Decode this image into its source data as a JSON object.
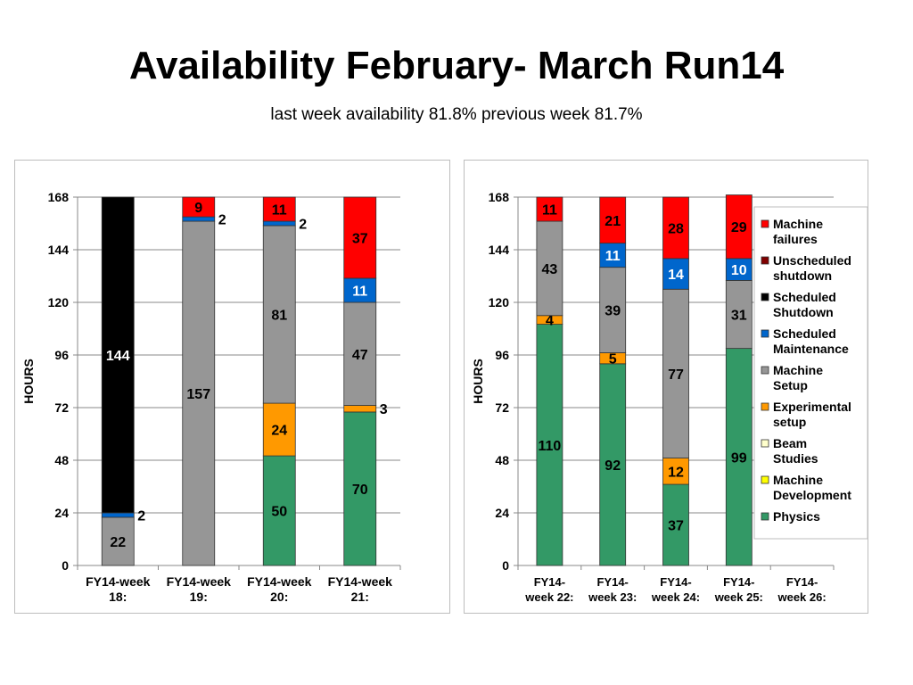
{
  "header": {
    "title": "Availability February- March Run14",
    "subtitle": "last week availability 81.8% previous week 81.7%"
  },
  "colors": {
    "Physics": "#339966",
    "Experimental setup": "#ff9900",
    "Machine Setup": "#969696",
    "Scheduled Maintenance": "#0066cc",
    "Scheduled Shutdown": "#000000",
    "Machine failures": "#ff0000",
    "Unscheduled shutdown": "#800000",
    "Beam Studies": "#ffffcc",
    "Machine Development": "#ffff00"
  },
  "chart_data": [
    {
      "type": "bar",
      "stacked": true,
      "ylabel": "HOURS",
      "ylim": [
        0,
        168
      ],
      "yticks": [
        "0",
        "24",
        "48",
        "72",
        "96",
        "120",
        "144",
        "168"
      ],
      "grid": true,
      "categories": [
        "FY14-week\n18:",
        "FY14-week\n19:",
        "FY14-week\n20:",
        "FY14-week\n21:"
      ],
      "series": [
        {
          "name": "Physics",
          "values": [
            0,
            0,
            50,
            70
          ],
          "labels": [
            "",
            "",
            "50",
            "70"
          ]
        },
        {
          "name": "Machine Setup",
          "values": [
            22,
            157,
            81,
            47
          ],
          "labels": [
            "22",
            "157",
            "81",
            "47"
          ]
        },
        {
          "name": "Experimental setup",
          "values": [
            0,
            0,
            24,
            3
          ],
          "labels": [
            "",
            "",
            "24",
            "3"
          ]
        },
        {
          "name": "Scheduled Maintenance",
          "values": [
            2,
            2,
            2,
            11
          ],
          "labels": [
            "2",
            "2",
            "2",
            "11"
          ]
        },
        {
          "name": "Scheduled Shutdown",
          "values": [
            144,
            0,
            0,
            0
          ],
          "labels": [
            "144",
            "",
            "",
            ""
          ]
        },
        {
          "name": "Machine failures",
          "values": [
            0,
            9,
            11,
            37
          ],
          "labels": [
            "",
            "9",
            "11",
            "37"
          ]
        }
      ]
    },
    {
      "type": "bar",
      "stacked": true,
      "ylabel": "HOURS",
      "ylim": [
        0,
        168
      ],
      "yticks": [
        "0",
        "24",
        "48",
        "72",
        "96",
        "120",
        "144",
        "168"
      ],
      "grid": true,
      "legend": "right",
      "categories": [
        "FY14-\nweek 22:",
        "FY14-\nweek 23:",
        "FY14-\nweek 24:",
        "FY14-\nweek 25:",
        "FY14-\nweek 26:"
      ],
      "series": [
        {
          "name": "Machine\nfailures",
          "values": [
            11,
            21,
            28,
            29,
            0
          ],
          "labels": [
            "11",
            "21",
            "28",
            "29",
            ""
          ]
        },
        {
          "name": "Unscheduled\nshutdown",
          "values": [
            0,
            0,
            0,
            0,
            0
          ],
          "labels": [
            "",
            "",
            "",
            "",
            ""
          ]
        },
        {
          "name": "Scheduled\nShutdown",
          "values": [
            0,
            0,
            0,
            0,
            0
          ],
          "labels": [
            "",
            "",
            "",
            "",
            ""
          ]
        },
        {
          "name": "Scheduled\nMaintenance",
          "values": [
            0,
            11,
            14,
            10,
            0
          ],
          "labels": [
            "",
            "11",
            "14",
            "10",
            ""
          ]
        },
        {
          "name": "Machine\nSetup",
          "values": [
            43,
            39,
            77,
            31,
            0
          ],
          "labels": [
            "43",
            "39",
            "77",
            "31",
            ""
          ]
        },
        {
          "name": "Experimental\nsetup",
          "values": [
            4,
            5,
            12,
            0,
            0
          ],
          "labels": [
            "4",
            "5",
            "12",
            "",
            ""
          ]
        },
        {
          "name": "Beam\nStudies",
          "values": [
            0,
            0,
            0,
            0,
            0
          ],
          "labels": [
            "",
            "",
            "",
            "",
            ""
          ]
        },
        {
          "name": "Machine\nDevelopment",
          "values": [
            0,
            0,
            0,
            0,
            0
          ],
          "labels": [
            "",
            "",
            "",
            "",
            ""
          ]
        },
        {
          "name": "Physics",
          "values": [
            110,
            92,
            37,
            99,
            0
          ],
          "labels": [
            "110",
            "92",
            "37",
            "99",
            ""
          ]
        }
      ]
    }
  ]
}
